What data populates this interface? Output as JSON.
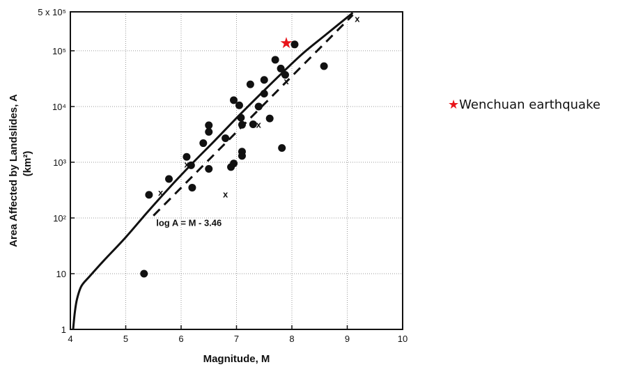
{
  "chart_data": {
    "type": "scatter",
    "xlabel": "Magnitude, M",
    "ylabel": "Area Affected by Landslides, A",
    "ylabel_unit": "(km²)",
    "xlim": [
      4,
      10
    ],
    "ylim": [
      1,
      500000
    ],
    "yscale": "log",
    "xticks": [
      4,
      5,
      6,
      7,
      8,
      9,
      10
    ],
    "yticks": [
      {
        "v": 1,
        "label": "1"
      },
      {
        "v": 10,
        "label": "10"
      },
      {
        "v": 100,
        "label": "10²"
      },
      {
        "v": 1000,
        "label": "10³"
      },
      {
        "v": 10000,
        "label": "10⁴"
      },
      {
        "v": 100000,
        "label": "10⁵"
      },
      {
        "v": 500000,
        "label": "5 x 10⁵"
      }
    ],
    "grid": true,
    "upper_bound_curve": [
      [
        4.05,
        1
      ],
      [
        4.08,
        2
      ],
      [
        4.12,
        3.5
      ],
      [
        4.2,
        6
      ],
      [
        4.35,
        9
      ],
      [
        4.6,
        17
      ],
      [
        5.0,
        45
      ],
      [
        5.4,
        130
      ],
      [
        5.8,
        360
      ],
      [
        6.2,
        950
      ],
      [
        6.6,
        2400
      ],
      [
        7.0,
        6200
      ],
      [
        7.4,
        15500
      ],
      [
        7.8,
        38000
      ],
      [
        8.2,
        90000
      ],
      [
        8.6,
        190000
      ],
      [
        9.1,
        480000
      ]
    ],
    "fit_line": {
      "label": "log A = M - 3.46",
      "start": [
        5.5,
        110
      ],
      "end": [
        9.1,
        440000
      ]
    },
    "dots": [
      [
        5.33,
        10
      ],
      [
        5.42,
        260
      ],
      [
        5.78,
        500
      ],
      [
        6.1,
        1250
      ],
      [
        6.18,
        880
      ],
      [
        6.2,
        350
      ],
      [
        6.4,
        2200
      ],
      [
        6.5,
        760
      ],
      [
        6.5,
        3500
      ],
      [
        6.5,
        4600
      ],
      [
        6.8,
        2700
      ],
      [
        6.9,
        820
      ],
      [
        6.95,
        950
      ],
      [
        6.95,
        13000
      ],
      [
        7.05,
        10500
      ],
      [
        7.08,
        6300
      ],
      [
        7.1,
        4700
      ],
      [
        7.1,
        1550
      ],
      [
        7.1,
        1300
      ],
      [
        7.25,
        25000
      ],
      [
        7.3,
        4800
      ],
      [
        7.4,
        10000
      ],
      [
        7.5,
        30000
      ],
      [
        7.5,
        17000
      ],
      [
        7.6,
        6100
      ],
      [
        7.7,
        69000
      ],
      [
        7.8,
        48000
      ],
      [
        7.82,
        1800
      ],
      [
        7.88,
        37000
      ],
      [
        8.05,
        130000
      ],
      [
        8.58,
        53000
      ]
    ],
    "crosses": [
      [
        5.63,
        290
      ],
      [
        6.1,
        930
      ],
      [
        6.8,
        270
      ],
      [
        7.4,
        4800
      ],
      [
        7.9,
        29000
      ],
      [
        9.18,
        380000
      ]
    ],
    "highlight": {
      "x": 7.9,
      "y": 140000,
      "color": "#e8141a"
    },
    "legend": {
      "label": "Wenchuan earthquake",
      "symbol": "★",
      "placement": "right"
    }
  }
}
